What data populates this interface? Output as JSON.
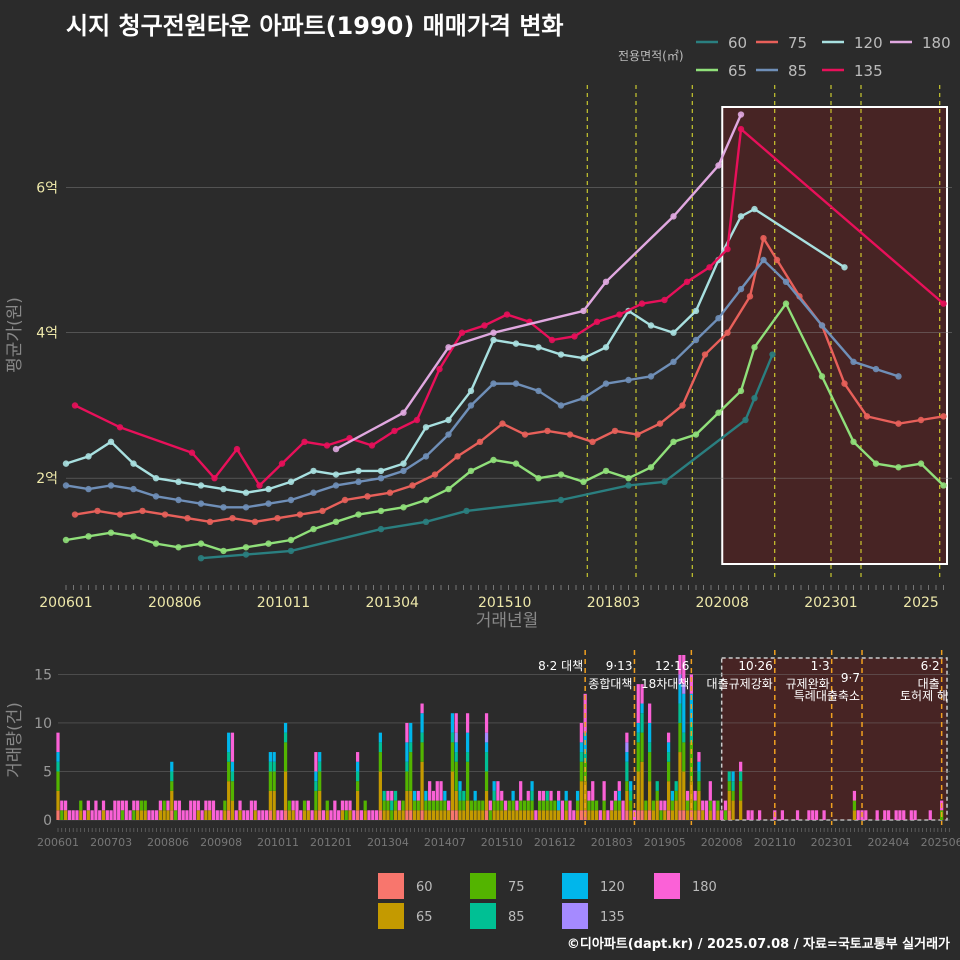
{
  "title": "시지 청구전원타운 아파트(1990) 매매가격 변화",
  "footer": "©디아파트(dapt.kr) / 2025.07.08 / 자료=국토교통부 실거래가",
  "legend_title": "전용면적(㎡)",
  "colors": {
    "60": "#2a7f80",
    "65": "#90e07a",
    "75": "#e8605a",
    "85": "#6f8fb8",
    "120": "#a8e0e0",
    "135": "#e8105a",
    "180": "#e0a8e0"
  },
  "bar_colors": {
    "60": "#f8766d",
    "65": "#c49a00",
    "75": "#53b400",
    "85": "#00c094",
    "120": "#00b6eb",
    "135": "#a58aff",
    "180": "#fb61d7"
  },
  "policies": [
    {
      "date": "2017.08",
      "label1": "8·2 대책",
      "label2": ""
    },
    {
      "date": "2018.09",
      "label1": "9·13",
      "label2": "종합대책"
    },
    {
      "date": "2019.12",
      "label1": "12·16",
      "label2": "18차대책"
    },
    {
      "date": "2021.10",
      "label1": "10·26",
      "label2": "대출규제강화"
    },
    {
      "date": "2023.01",
      "label1": "1·3",
      "label2": "규제완화"
    },
    {
      "date": "2023.09",
      "label1": "9·7",
      "label2": "특례대출축소"
    },
    {
      "date": "2025.06",
      "label1": "6·2",
      "label2": "대출"
    }
  ],
  "extra_note": "토허제 해",
  "chart_data": [
    {
      "type": "line",
      "ylabel": "평균가(원)",
      "xlabel": "거래년월",
      "x_ticks": [
        "200601",
        "200806",
        "201011",
        "201304",
        "201510",
        "201803",
        "202008",
        "202301",
        "2025"
      ],
      "y_ticks": [
        "2억",
        "4억",
        "6억"
      ],
      "y_tick_values": [
        2,
        4,
        6
      ],
      "ylim": [
        0.6,
        7.2
      ],
      "highlight_start": "2020.08",
      "series": [
        {
          "name": "60",
          "points": [
            [
              2009.0,
              0.9
            ],
            [
              2010.0,
              0.95
            ],
            [
              2011.0,
              1.0
            ],
            [
              2013.0,
              1.3
            ],
            [
              2014.0,
              1.4
            ],
            [
              2014.9,
              1.55
            ],
            [
              2017.0,
              1.7
            ],
            [
              2018.5,
              1.9
            ],
            [
              2019.3,
              1.95
            ],
            [
              2021.1,
              2.8
            ],
            [
              2021.3,
              3.1
            ],
            [
              2021.7,
              3.7
            ]
          ]
        },
        {
          "name": "65",
          "points": [
            [
              2006.0,
              1.15
            ],
            [
              2006.5,
              1.2
            ],
            [
              2007.0,
              1.25
            ],
            [
              2007.5,
              1.2
            ],
            [
              2008.0,
              1.1
            ],
            [
              2008.5,
              1.05
            ],
            [
              2009.0,
              1.1
            ],
            [
              2009.5,
              1.0
            ],
            [
              2010.0,
              1.05
            ],
            [
              2010.5,
              1.1
            ],
            [
              2011.0,
              1.15
            ],
            [
              2011.5,
              1.3
            ],
            [
              2012.0,
              1.4
            ],
            [
              2012.5,
              1.5
            ],
            [
              2013.0,
              1.55
            ],
            [
              2013.5,
              1.6
            ],
            [
              2014.0,
              1.7
            ],
            [
              2014.5,
              1.85
            ],
            [
              2015.0,
              2.1
            ],
            [
              2015.5,
              2.25
            ],
            [
              2016.0,
              2.2
            ],
            [
              2016.5,
              2.0
            ],
            [
              2017.0,
              2.05
            ],
            [
              2017.5,
              1.95
            ],
            [
              2018.0,
              2.1
            ],
            [
              2018.5,
              2.0
            ],
            [
              2019.0,
              2.15
            ],
            [
              2019.5,
              2.5
            ],
            [
              2020.0,
              2.6
            ],
            [
              2020.5,
              2.9
            ],
            [
              2021.0,
              3.2
            ],
            [
              2021.3,
              3.8
            ],
            [
              2022.0,
              4.4
            ],
            [
              2022.8,
              3.4
            ],
            [
              2023.5,
              2.5
            ],
            [
              2024.0,
              2.2
            ],
            [
              2024.5,
              2.15
            ],
            [
              2025.0,
              2.2
            ],
            [
              2025.5,
              1.9
            ]
          ]
        },
        {
          "name": "75",
          "points": [
            [
              2006.2,
              1.5
            ],
            [
              2006.7,
              1.55
            ],
            [
              2007.2,
              1.5
            ],
            [
              2007.7,
              1.55
            ],
            [
              2008.2,
              1.5
            ],
            [
              2008.7,
              1.45
            ],
            [
              2009.2,
              1.4
            ],
            [
              2009.7,
              1.45
            ],
            [
              2010.2,
              1.4
            ],
            [
              2010.7,
              1.45
            ],
            [
              2011.2,
              1.5
            ],
            [
              2011.7,
              1.55
            ],
            [
              2012.2,
              1.7
            ],
            [
              2012.7,
              1.75
            ],
            [
              2013.2,
              1.8
            ],
            [
              2013.7,
              1.9
            ],
            [
              2014.2,
              2.05
            ],
            [
              2014.7,
              2.3
            ],
            [
              2015.2,
              2.5
            ],
            [
              2015.7,
              2.75
            ],
            [
              2016.2,
              2.6
            ],
            [
              2016.7,
              2.65
            ],
            [
              2017.2,
              2.6
            ],
            [
              2017.7,
              2.5
            ],
            [
              2018.2,
              2.65
            ],
            [
              2018.7,
              2.6
            ],
            [
              2019.2,
              2.75
            ],
            [
              2019.7,
              3.0
            ],
            [
              2020.2,
              3.7
            ],
            [
              2020.7,
              4.0
            ],
            [
              2021.2,
              4.5
            ],
            [
              2021.5,
              5.3
            ],
            [
              2021.8,
              5.0
            ],
            [
              2022.3,
              4.5
            ],
            [
              2022.8,
              4.1
            ],
            [
              2023.3,
              3.3
            ],
            [
              2023.8,
              2.85
            ],
            [
              2024.5,
              2.75
            ],
            [
              2025.0,
              2.8
            ],
            [
              2025.5,
              2.85
            ]
          ]
        },
        {
          "name": "85",
          "points": [
            [
              2006.0,
              1.9
            ],
            [
              2006.5,
              1.85
            ],
            [
              2007.0,
              1.9
            ],
            [
              2007.5,
              1.85
            ],
            [
              2008.0,
              1.75
            ],
            [
              2008.5,
              1.7
            ],
            [
              2009.0,
              1.65
            ],
            [
              2009.5,
              1.6
            ],
            [
              2010.0,
              1.6
            ],
            [
              2010.5,
              1.65
            ],
            [
              2011.0,
              1.7
            ],
            [
              2011.5,
              1.8
            ],
            [
              2012.0,
              1.9
            ],
            [
              2012.5,
              1.95
            ],
            [
              2013.0,
              2.0
            ],
            [
              2013.5,
              2.1
            ],
            [
              2014.0,
              2.3
            ],
            [
              2014.5,
              2.6
            ],
            [
              2015.0,
              3.0
            ],
            [
              2015.5,
              3.3
            ],
            [
              2016.0,
              3.3
            ],
            [
              2016.5,
              3.2
            ],
            [
              2017.0,
              3.0
            ],
            [
              2017.5,
              3.1
            ],
            [
              2018.0,
              3.3
            ],
            [
              2018.5,
              3.35
            ],
            [
              2019.0,
              3.4
            ],
            [
              2019.5,
              3.6
            ],
            [
              2020.0,
              3.9
            ],
            [
              2020.5,
              4.2
            ],
            [
              2021.0,
              4.6
            ],
            [
              2021.5,
              5.0
            ],
            [
              2022.0,
              4.7
            ],
            [
              2022.8,
              4.1
            ],
            [
              2023.5,
              3.6
            ],
            [
              2024.0,
              3.5
            ],
            [
              2024.5,
              3.4
            ]
          ]
        },
        {
          "name": "120",
          "points": [
            [
              2006.0,
              2.2
            ],
            [
              2006.5,
              2.3
            ],
            [
              2007.0,
              2.5
            ],
            [
              2007.5,
              2.2
            ],
            [
              2008.0,
              2.0
            ],
            [
              2008.5,
              1.95
            ],
            [
              2009.0,
              1.9
            ],
            [
              2009.5,
              1.85
            ],
            [
              2010.0,
              1.8
            ],
            [
              2010.5,
              1.85
            ],
            [
              2011.0,
              1.95
            ],
            [
              2011.5,
              2.1
            ],
            [
              2012.0,
              2.05
            ],
            [
              2012.5,
              2.1
            ],
            [
              2013.0,
              2.1
            ],
            [
              2013.5,
              2.2
            ],
            [
              2014.0,
              2.7
            ],
            [
              2014.5,
              2.8
            ],
            [
              2015.0,
              3.2
            ],
            [
              2015.5,
              3.9
            ],
            [
              2016.0,
              3.85
            ],
            [
              2016.5,
              3.8
            ],
            [
              2017.0,
              3.7
            ],
            [
              2017.5,
              3.65
            ],
            [
              2018.0,
              3.8
            ],
            [
              2018.5,
              4.3
            ],
            [
              2019.0,
              4.1
            ],
            [
              2019.5,
              4.0
            ],
            [
              2020.0,
              4.3
            ],
            [
              2020.5,
              5.0
            ],
            [
              2021.0,
              5.6
            ],
            [
              2021.3,
              5.7
            ],
            [
              2023.3,
              4.9
            ]
          ]
        },
        {
          "name": "135",
          "points": [
            [
              2006.2,
              3.0
            ],
            [
              2007.2,
              2.7
            ],
            [
              2008.8,
              2.35
            ],
            [
              2009.3,
              2.0
            ],
            [
              2009.8,
              2.4
            ],
            [
              2010.3,
              1.9
            ],
            [
              2010.8,
              2.2
            ],
            [
              2011.3,
              2.5
            ],
            [
              2011.8,
              2.45
            ],
            [
              2012.3,
              2.55
            ],
            [
              2012.8,
              2.45
            ],
            [
              2013.3,
              2.65
            ],
            [
              2013.8,
              2.8
            ],
            [
              2014.3,
              3.5
            ],
            [
              2014.8,
              4.0
            ],
            [
              2015.3,
              4.1
            ],
            [
              2015.8,
              4.25
            ],
            [
              2016.3,
              4.15
            ],
            [
              2016.8,
              3.9
            ],
            [
              2017.3,
              3.95
            ],
            [
              2017.8,
              4.15
            ],
            [
              2018.3,
              4.25
            ],
            [
              2018.8,
              4.4
            ],
            [
              2019.3,
              4.45
            ],
            [
              2019.8,
              4.7
            ],
            [
              2020.3,
              4.9
            ],
            [
              2020.7,
              5.15
            ],
            [
              2021.0,
              6.8
            ],
            [
              2025.5,
              4.4
            ]
          ]
        },
        {
          "name": "180",
          "points": [
            [
              2012.0,
              2.4
            ],
            [
              2013.5,
              2.9
            ],
            [
              2014.5,
              3.8
            ],
            [
              2015.5,
              4.0
            ],
            [
              2017.5,
              4.3
            ],
            [
              2018.0,
              4.7
            ],
            [
              2019.5,
              5.6
            ],
            [
              2020.5,
              6.3
            ],
            [
              2021.0,
              7.0
            ]
          ]
        }
      ]
    },
    {
      "type": "bar",
      "ylabel": "거래량(건)",
      "y_ticks": [
        "0",
        "5",
        "10",
        "15"
      ],
      "y_tick_values": [
        0,
        5,
        10,
        15
      ],
      "ylim": [
        0,
        17
      ],
      "x_ticks": [
        "200601",
        "200703",
        "200806",
        "200908",
        "201011",
        "201201",
        "201304",
        "201407",
        "201510",
        "201612",
        "201803",
        "201905",
        "202008",
        "202110",
        "202301",
        "202404",
        "202506"
      ],
      "stack_order": [
        "60",
        "65",
        "75",
        "85",
        "120",
        "135",
        "180"
      ],
      "peaks": [
        {
          "t": 2006.0,
          "v": 9
        },
        {
          "t": 2008.5,
          "v": 6
        },
        {
          "t": 2009.8,
          "v": 9
        },
        {
          "t": 2010.7,
          "v": 7
        },
        {
          "t": 2011.0,
          "v": 10
        },
        {
          "t": 2011.7,
          "v": 7
        },
        {
          "t": 2012.6,
          "v": 7
        },
        {
          "t": 2013.1,
          "v": 9
        },
        {
          "t": 2013.7,
          "v": 10
        },
        {
          "t": 2014.0,
          "v": 12
        },
        {
          "t": 2014.7,
          "v": 11
        },
        {
          "t": 2015.0,
          "v": 11
        },
        {
          "t": 2015.4,
          "v": 11
        },
        {
          "t": 2017.5,
          "v": 10
        },
        {
          "t": 2017.6,
          "v": 13
        },
        {
          "t": 2018.5,
          "v": 9
        },
        {
          "t": 2018.8,
          "v": 14
        },
        {
          "t": 2019.0,
          "v": 12
        },
        {
          "t": 2019.4,
          "v": 9
        },
        {
          "t": 2019.7,
          "v": 17
        },
        {
          "t": 2019.9,
          "v": 15
        },
        {
          "t": 2020.1,
          "v": 7
        },
        {
          "t": 2020.8,
          "v": 5
        },
        {
          "t": 2021.0,
          "v": 6
        },
        {
          "t": 2023.5,
          "v": 3
        },
        {
          "t": 2025.4,
          "v": 2
        }
      ]
    }
  ]
}
